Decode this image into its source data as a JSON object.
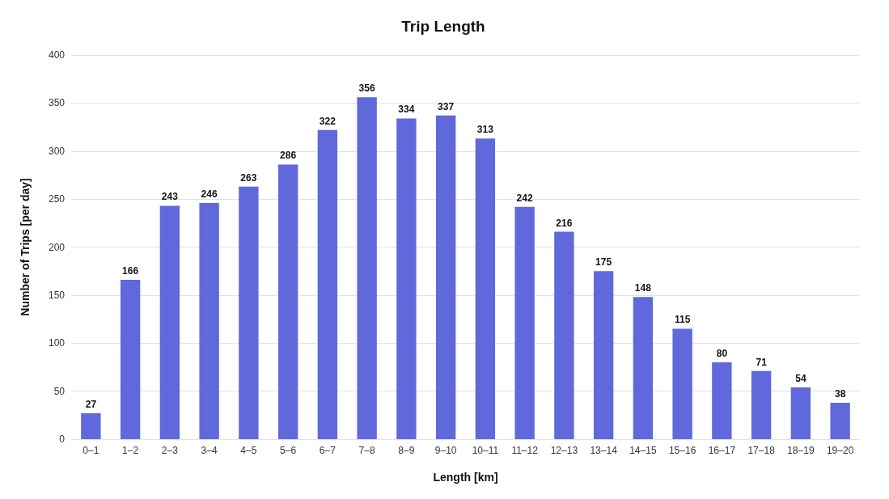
{
  "chart_data": {
    "type": "bar",
    "title": "Trip Length",
    "xlabel": "Length [km]",
    "ylabel": "Number of Trips [per day]",
    "categories": [
      "0–1",
      "1–2",
      "2–3",
      "3–4",
      "4–5",
      "5–6",
      "6–7",
      "7–8",
      "8–9",
      "9–10",
      "10–11",
      "11–12",
      "12–13",
      "13–14",
      "14–15",
      "15–16",
      "16–17",
      "17–18",
      "18–19",
      "19–20"
    ],
    "values": [
      27,
      166,
      243,
      246,
      263,
      286,
      322,
      356,
      334,
      337,
      313,
      242,
      216,
      175,
      148,
      115,
      80,
      71,
      54,
      38
    ],
    "color": "#6068dc",
    "ylim": [
      0,
      400
    ],
    "yticks": [
      0,
      50,
      100,
      150,
      200,
      250,
      300,
      350,
      400
    ],
    "grid": "y",
    "data_labels": true
  }
}
